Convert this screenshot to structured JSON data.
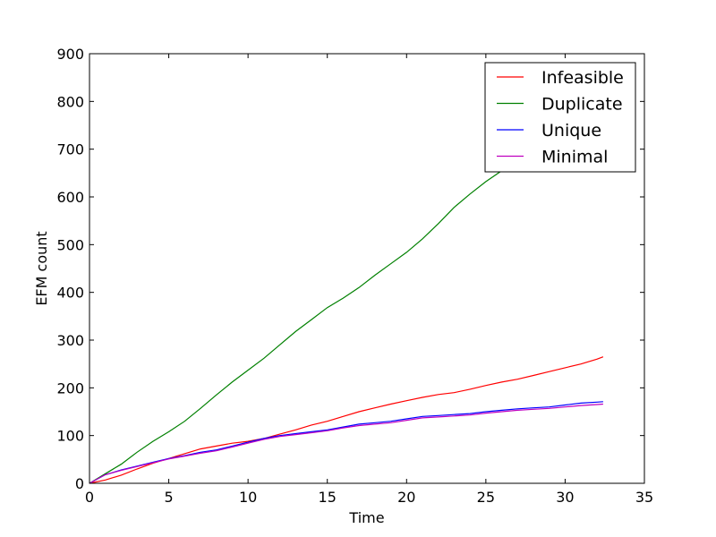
{
  "chart_data": {
    "type": "line",
    "title": "",
    "xlabel": "Time",
    "ylabel": "EFM count",
    "xlim": [
      0,
      35
    ],
    "ylim": [
      0,
      900
    ],
    "xticks": [
      "0",
      "5",
      "10",
      "15",
      "20",
      "25",
      "30",
      "35"
    ],
    "yticks": [
      "0",
      "100",
      "200",
      "300",
      "400",
      "500",
      "600",
      "700",
      "800",
      "900"
    ],
    "grid": false,
    "legend_position": "top-right",
    "series": [
      {
        "name": "Infeasible",
        "color": "#ff0000",
        "x": [
          0,
          1,
          2,
          3,
          4,
          5,
          6,
          7,
          8,
          9,
          10,
          11,
          12,
          13,
          14,
          15,
          16,
          17,
          18,
          19,
          20,
          21,
          22,
          23,
          24,
          25,
          26,
          27,
          28,
          29,
          30,
          31,
          32,
          32.4
        ],
        "y": [
          0,
          7,
          17,
          30,
          42,
          52,
          62,
          72,
          78,
          84,
          88,
          94,
          103,
          112,
          122,
          130,
          140,
          150,
          158,
          166,
          173,
          180,
          186,
          190,
          197,
          205,
          212,
          218,
          226,
          234,
          242,
          250,
          260,
          265
        ]
      },
      {
        "name": "Duplicate",
        "color": "#008000",
        "x": [
          0,
          1,
          2,
          3,
          4,
          5,
          6,
          7,
          8,
          9,
          10,
          11,
          12,
          13,
          14,
          15,
          16,
          17,
          18,
          19,
          20,
          21,
          22,
          23,
          24,
          25,
          26,
          27,
          28,
          29,
          30,
          31,
          32,
          32.4
        ],
        "y": [
          0,
          20,
          40,
          65,
          88,
          108,
          130,
          157,
          185,
          212,
          237,
          262,
          290,
          318,
          343,
          368,
          388,
          410,
          436,
          460,
          484,
          512,
          544,
          578,
          606,
          632,
          655,
          678,
          703,
          728,
          755,
          780,
          810,
          825
        ]
      },
      {
        "name": "Unique",
        "color": "#0000ff",
        "x": [
          0,
          1,
          2,
          3,
          4,
          5,
          6,
          7,
          8,
          9,
          10,
          11,
          12,
          13,
          14,
          15,
          16,
          17,
          18,
          19,
          20,
          21,
          22,
          23,
          24,
          25,
          26,
          27,
          28,
          29,
          30,
          31,
          32,
          32.4
        ],
        "y": [
          0,
          18,
          28,
          36,
          44,
          52,
          58,
          65,
          70,
          78,
          86,
          94,
          100,
          104,
          108,
          112,
          118,
          124,
          127,
          130,
          135,
          140,
          142,
          144,
          146,
          150,
          153,
          156,
          158,
          160,
          164,
          168,
          170,
          171
        ]
      },
      {
        "name": "Minimal",
        "color": "#bf00bf",
        "x": [
          0,
          1,
          2,
          3,
          4,
          5,
          6,
          7,
          8,
          9,
          10,
          11,
          12,
          13,
          14,
          15,
          16,
          17,
          18,
          19,
          20,
          21,
          22,
          23,
          24,
          25,
          26,
          27,
          28,
          29,
          30,
          31,
          32,
          32.4
        ],
        "y": [
          0,
          18,
          27,
          35,
          43,
          51,
          57,
          63,
          68,
          76,
          84,
          92,
          98,
          102,
          106,
          110,
          116,
          121,
          124,
          127,
          132,
          137,
          139,
          141,
          143,
          147,
          150,
          153,
          155,
          157,
          160,
          163,
          165,
          166
        ]
      }
    ]
  }
}
